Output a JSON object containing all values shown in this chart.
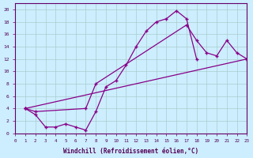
{
  "xlabel": "Windchill (Refroidissement éolien,°C)",
  "background_color": "#cceeff",
  "grid_color": "#aacccc",
  "line_color": "#880088",
  "xlim": [
    0,
    23
  ],
  "ylim": [
    0,
    21
  ],
  "xticks": [
    0,
    1,
    2,
    3,
    4,
    5,
    6,
    7,
    8,
    9,
    10,
    11,
    12,
    13,
    14,
    15,
    16,
    17,
    18,
    19,
    20,
    21,
    22,
    23
  ],
  "yticks": [
    0,
    2,
    4,
    6,
    8,
    10,
    12,
    14,
    16,
    18,
    20
  ],
  "lines": [
    {
      "x": [
        1,
        2,
        3,
        4,
        5,
        6,
        7,
        8,
        9,
        10,
        11,
        12,
        13,
        14,
        15,
        16,
        17,
        18
      ],
      "y": [
        4,
        3,
        1,
        1,
        1.5,
        1,
        0.5,
        3.5,
        7.5,
        8.5,
        11,
        14,
        16.5,
        18,
        18.5,
        19.8,
        18.5,
        12
      ]
    },
    {
      "x": [
        1,
        2,
        7,
        8,
        17,
        18,
        19,
        20,
        21,
        22,
        23
      ],
      "y": [
        4,
        3.5,
        4,
        8,
        17.5,
        15,
        13,
        12.5,
        15,
        13,
        12
      ]
    },
    {
      "x": [
        1,
        23
      ],
      "y": [
        4,
        12
      ]
    }
  ]
}
